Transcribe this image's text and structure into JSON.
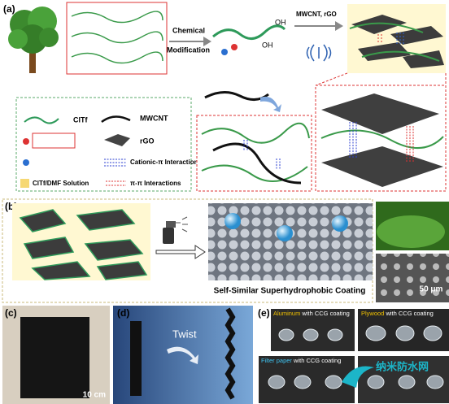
{
  "panels": {
    "a": {
      "label": "(a)",
      "step1": [
        "Chemical",
        "Modification"
      ],
      "hydroxyl": "OH",
      "step2": "MWCNT, rGO",
      "legend": [
        "ClTf",
        "MWCNT",
        "rGO",
        "Cationic-π Interactions",
        "ClTf/DMF Solution",
        "π-π Interactions"
      ]
    },
    "b": {
      "label": "(b)",
      "caption": "Self-Similar Superhydrophobic Coating",
      "scale": "50 μm"
    },
    "c": {
      "label": "(c)",
      "scale": "10 cm"
    },
    "d": {
      "label": "(d)",
      "action": "Twist"
    },
    "e": {
      "label": "(e)",
      "suffix": " with CCG coating",
      "substrates": [
        "Aluminum",
        "Plywood",
        "Filter paper"
      ],
      "watermark": "纳米防水网"
    }
  }
}
